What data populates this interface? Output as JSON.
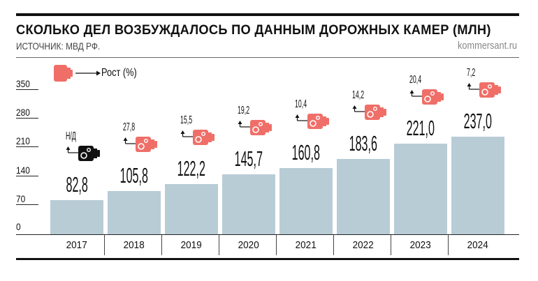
{
  "header": {
    "title": "СКОЛЬКО ДЕЛ ВОЗБУЖДАЛОСЬ ПО ДАННЫМ ДОРОЖНЫХ КАМЕР (МЛН)",
    "source": "ИСТОЧНИК: МВД РФ.",
    "brand": "kommersant.ru"
  },
  "legend": {
    "label": "Рост (%)",
    "icon": "camera-icon",
    "color": "#ef6f68"
  },
  "chart_data": {
    "type": "bar",
    "title": "СКОЛЬКО ДЕЛ ВОЗБУЖДАЛОСЬ ПО ДАННЫМ ДОРОЖНЫХ КАМЕР (МЛН)",
    "categories": [
      "2017",
      "2018",
      "2019",
      "2020",
      "2021",
      "2022",
      "2023",
      "2024"
    ],
    "values": [
      82.8,
      105.8,
      122.2,
      145.7,
      160.8,
      183.6,
      221.0,
      237.0
    ],
    "value_labels": [
      "82,8",
      "105,8",
      "122,2",
      "145,7",
      "160,8",
      "183,6",
      "221,0",
      "237,0"
    ],
    "growth_labels": [
      "Н/Д",
      "27,8",
      "15,5",
      "19,2",
      "10,4",
      "14,2",
      "20,4",
      "7,2"
    ],
    "growth_colors": [
      "#111111",
      "#ef6f68",
      "#ef6f68",
      "#ef6f68",
      "#ef6f68",
      "#ef6f68",
      "#ef6f68",
      "#ef6f68"
    ],
    "ylim": [
      0,
      350
    ],
    "yticks": [
      "0",
      "70",
      "140",
      "210",
      "280",
      "350"
    ],
    "bar_color": "#b8ccd6",
    "grid": false
  }
}
